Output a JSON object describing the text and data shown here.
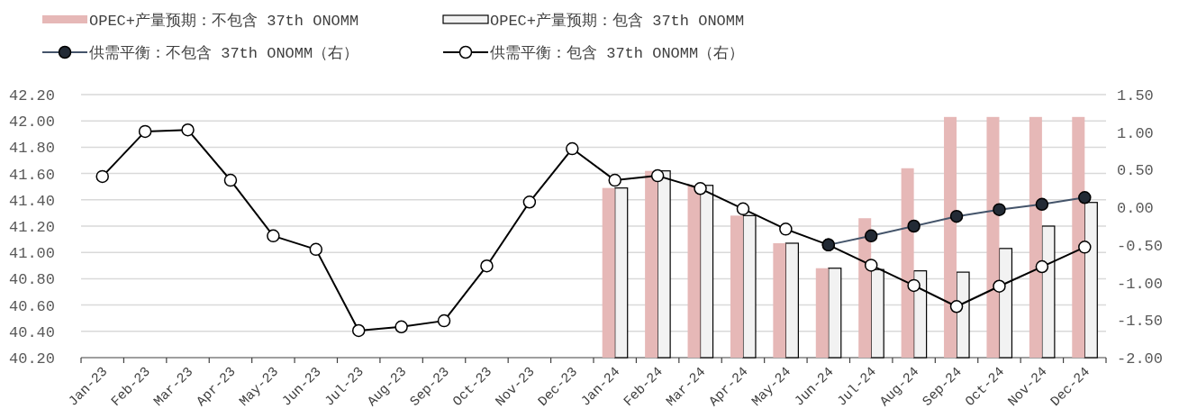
{
  "chart_data": {
    "type": "bar",
    "categories": [
      "Jan-23",
      "Feb-23",
      "Mar-23",
      "Apr-23",
      "May-23",
      "Jun-23",
      "Jul-23",
      "Aug-23",
      "Sep-23",
      "Oct-23",
      "Nov-23",
      "Dec-23",
      "Jan-24",
      "Feb-24",
      "Mar-24",
      "Apr-24",
      "May-24",
      "Jun-24",
      "Jul-24",
      "Aug-24",
      "Sep-24",
      "Oct-24",
      "Nov-24",
      "Dec-24"
    ],
    "series": [
      {
        "name": "OPEC+产量预期：不包含 37th ONOMM",
        "color": "#e6b8b7",
        "values": [
          null,
          null,
          null,
          null,
          null,
          null,
          null,
          null,
          null,
          null,
          null,
          null,
          41.49,
          41.62,
          41.51,
          41.28,
          41.07,
          40.88,
          41.26,
          41.64,
          42.03,
          42.03,
          42.03,
          42.03
        ]
      },
      {
        "name": "OPEC+产量预期：包含 37th ONOMM",
        "color": "#f2f2f2",
        "values": [
          null,
          null,
          null,
          null,
          null,
          null,
          null,
          null,
          null,
          null,
          null,
          null,
          41.49,
          41.62,
          41.51,
          41.28,
          41.07,
          40.88,
          40.87,
          40.86,
          40.85,
          41.03,
          41.2,
          41.38
        ]
      },
      {
        "name": "供需平衡：不包含 37th ONOMM（右）",
        "type": "line",
        "axis": "y2",
        "color": "#44546a",
        "marker": "circle",
        "values": [
          null,
          null,
          null,
          null,
          null,
          null,
          null,
          null,
          null,
          null,
          null,
          null,
          null,
          null,
          null,
          null,
          null,
          -0.5,
          -0.38,
          -0.25,
          -0.12,
          -0.03,
          0.04,
          0.13
        ]
      },
      {
        "name": "供需平衡：包含 37th ONOMM（右）",
        "type": "line",
        "axis": "y2",
        "color": "#000000",
        "marker": "circle",
        "values": [
          0.41,
          1.01,
          1.03,
          0.36,
          -0.38,
          -0.56,
          -1.64,
          -1.59,
          -1.51,
          -0.78,
          0.07,
          0.78,
          0.36,
          0.42,
          0.25,
          -0.02,
          -0.29,
          -0.5,
          -0.77,
          -1.04,
          -1.32,
          -1.05,
          -0.79,
          -0.53
        ]
      }
    ],
    "ylim": [
      40.2,
      42.2
    ],
    "yticks": [
      {
        "value": 40.2,
        "label": "40.20"
      },
      {
        "value": 40.4,
        "label": "40.40"
      },
      {
        "value": 40.6,
        "label": "40.60"
      },
      {
        "value": 40.8,
        "label": "40.80"
      },
      {
        "value": 41.0,
        "label": "41.00"
      },
      {
        "value": 41.2,
        "label": "41.20"
      },
      {
        "value": 41.4,
        "label": "41.40"
      },
      {
        "value": 41.6,
        "label": "41.60"
      },
      {
        "value": 41.8,
        "label": "41.80"
      },
      {
        "value": 42.0,
        "label": "42.00"
      },
      {
        "value": 42.2,
        "label": "42.20"
      }
    ],
    "y2lim": [
      -2.0,
      1.5
    ],
    "y2ticks": [
      {
        "value": -2.0,
        "label": "-2.00"
      },
      {
        "value": -1.5,
        "label": "-1.50"
      },
      {
        "value": -1.0,
        "label": "-1.00"
      },
      {
        "value": -0.5,
        "label": "-0.50"
      },
      {
        "value": 0,
        "label": "0.00"
      },
      {
        "value": 0.5,
        "label": "0.50"
      },
      {
        "value": 1.0,
        "label": "1.00"
      },
      {
        "value": 1.5,
        "label": "1.50"
      }
    ],
    "grid": "y",
    "legend": "top"
  }
}
